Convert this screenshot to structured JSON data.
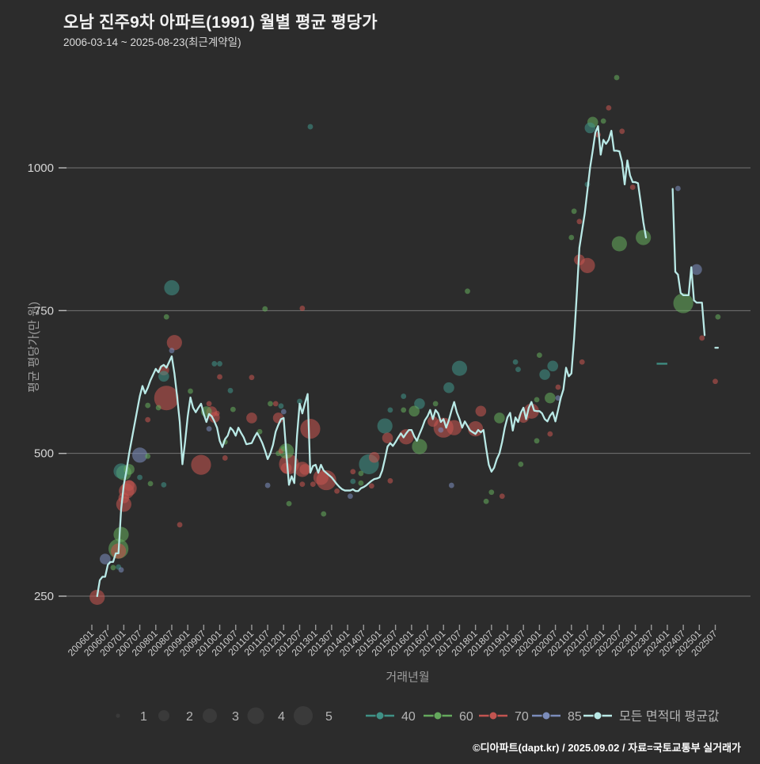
{
  "title": "오남 진주9차 아파트(1991) 월별 평균 평당가",
  "subtitle": "2006-03-14 ~ 2025-08-23(최근계약일)",
  "footer": "©디아파트(dapt.kr) / 2025.09.02 / 자료=국토교통부 실거래가",
  "colors": {
    "background": "#2c2c2c",
    "grid": "#8b8b8b",
    "avg_line": "#b9e9e6",
    "size_legend_dot": "#3a3a3a",
    "area40": "#3f9186",
    "area60": "#64a85c",
    "area70": "#c25450",
    "area85": "#7b8cba"
  },
  "chart_data": {
    "type": "scatter",
    "title": "오남 진주9차 아파트(1991) 월별 평균 평당가",
    "xlabel": "거래년월",
    "ylabel": "평균 평당가(만 원)",
    "yticks": [
      250,
      500,
      750,
      1000
    ],
    "ylim": [
      200,
      1180
    ],
    "grid": "horizontal-only",
    "xticks": [
      "200601",
      "200607",
      "200701",
      "200707",
      "200801",
      "200807",
      "200901",
      "200907",
      "201001",
      "201007",
      "201101",
      "201107",
      "201201",
      "201207",
      "201301",
      "201307",
      "201401",
      "201407",
      "201501",
      "201507",
      "201601",
      "201607",
      "201701",
      "201707",
      "201801",
      "201807",
      "201901",
      "201907",
      "202001",
      "202007",
      "202101",
      "202107",
      "202201",
      "202207",
      "202301",
      "202307",
      "202401",
      "202407",
      "202501",
      "202507"
    ],
    "size_legend": [
      "1",
      "2",
      "3",
      "4",
      "5"
    ],
    "series_legend": [
      {
        "key": "40",
        "color": "#3f9186"
      },
      {
        "key": "60",
        "color": "#64a85c"
      },
      {
        "key": "70",
        "color": "#c25450"
      },
      {
        "key": "85",
        "color": "#7b8cba"
      },
      {
        "key": "모든 면적대 평균값",
        "color": "#b9e9e6"
      }
    ],
    "avg_series_name": "모든 면적대 평균값",
    "avg_line_segments": [
      {
        "start": "200603",
        "values": [
          250,
          278,
          284,
          284,
          305,
          310,
          310,
          325,
          325,
          402,
          445,
          470,
          500,
          525,
          550,
          575,
          600,
          618,
          605,
          615,
          628,
          638,
          648,
          642,
          652,
          655,
          650,
          660,
          670,
          640,
          600,
          555,
          481,
          520,
          565,
          598,
          580,
          572,
          580,
          587,
          569,
          555,
          569,
          565,
          556,
          545,
          522,
          511,
          525,
          531,
          545,
          540,
          531,
          545,
          536,
          528,
          516,
          517,
          518,
          528,
          536,
          528,
          518,
          505,
          490,
          500,
          515,
          538,
          550,
          560,
          562,
          500,
          445,
          460,
          448,
          530,
          587,
          570,
          588,
          604,
          466,
          478,
          480,
          466,
          480,
          470,
          466,
          462,
          458,
          452,
          446,
          441,
          437,
          435,
          435,
          435,
          437,
          434,
          434,
          439,
          441,
          444,
          448,
          452,
          455,
          456,
          458,
          470,
          490,
          512,
          518,
          513,
          520,
          528,
          535,
          528,
          535,
          541,
          541,
          530,
          522,
          534,
          545,
          558,
          565,
          576,
          560,
          576,
          570,
          555,
          560,
          545,
          558,
          575,
          590,
          572,
          560,
          545,
          556,
          548,
          540,
          537,
          534,
          541,
          537,
          541,
          509,
          480,
          468,
          475,
          490,
          500,
          520,
          545,
          563,
          571,
          540,
          563,
          555,
          571,
          580,
          560,
          580,
          590,
          575,
          574,
          574,
          570,
          560,
          556,
          566,
          572,
          556,
          576,
          597,
          612,
          650,
          635,
          640,
          700,
          777,
          860,
          890,
          920,
          960,
          1000,
          1030,
          1062,
          1073,
          1023,
          1049,
          1042,
          1049,
          1065,
          1030,
          1030,
          1029,
          1010,
          971,
          1013,
          987,
          975,
          975,
          973,
          940,
          905,
          878
        ]
      },
      {
        "start": "202403",
        "values": [
          963,
          818,
          813,
          781,
          777,
          777,
          777,
          826,
          768,
          764,
          764,
          764,
          707
        ]
      },
      {
        "start": "202507",
        "values": [
          685,
          685
        ]
      }
    ],
    "series40_segments": [
      {
        "start": "202309",
        "values": [
          657,
          657,
          657,
          657,
          657
        ]
      }
    ],
    "bubbles_format": [
      "yyyymm",
      "price_per_pyeong",
      "size_1to5",
      "area_category"
    ],
    "bubbles": [
      [
        "200603",
        248,
        3,
        "70"
      ],
      [
        "200606",
        315,
        2,
        "85"
      ],
      [
        "200609",
        300,
        1,
        "60"
      ],
      [
        "200611",
        301,
        1,
        "40"
      ],
      [
        "200612",
        296,
        1,
        "85"
      ],
      [
        "200611",
        333,
        4,
        "60"
      ],
      [
        "200611",
        329,
        3,
        "70"
      ],
      [
        "200612",
        358,
        3,
        "60"
      ],
      [
        "200701",
        411,
        3,
        "70"
      ],
      [
        "200701",
        422,
        2,
        "70"
      ],
      [
        "200702",
        434,
        3,
        "70"
      ],
      [
        "200703",
        439,
        3,
        "70"
      ],
      [
        "200703",
        444,
        2,
        "70"
      ],
      [
        "200701",
        466,
        3,
        "60"
      ],
      [
        "200612",
        469,
        3,
        "40"
      ],
      [
        "200703",
        472,
        2,
        "60"
      ],
      [
        "200707",
        497,
        3,
        "85"
      ],
      [
        "200710",
        495,
        1,
        "60"
      ],
      [
        "200707",
        458,
        1,
        "40"
      ],
      [
        "200711",
        447,
        1,
        "60"
      ],
      [
        "200804",
        445,
        1,
        "40"
      ],
      [
        "200810",
        375,
        1,
        "70"
      ],
      [
        "200802",
        580,
        1,
        "60"
      ],
      [
        "200710",
        584,
        1,
        "60"
      ],
      [
        "200710",
        559,
        1,
        "70"
      ],
      [
        "200804",
        646,
        2,
        "70"
      ],
      [
        "200804",
        635,
        2,
        "40"
      ],
      [
        "200805",
        739,
        1,
        "60"
      ],
      [
        "200807",
        790,
        3,
        "40"
      ],
      [
        "200808",
        694,
        3,
        "70"
      ],
      [
        "200807",
        680,
        1,
        "85"
      ],
      [
        "200805",
        597,
        5,
        "70"
      ],
      [
        "200906",
        480,
        4,
        "70"
      ],
      [
        "200902",
        609,
        1,
        "60"
      ],
      [
        "200911",
        657,
        1,
        "40"
      ],
      [
        "201001",
        657,
        1,
        "40"
      ],
      [
        "201005",
        610,
        1,
        "40"
      ],
      [
        "200910",
        573,
        2,
        "70"
      ],
      [
        "200908",
        573,
        2,
        "60"
      ],
      [
        "200912",
        570,
        1,
        "70"
      ],
      [
        "200909",
        543,
        1,
        "85"
      ],
      [
        "201003",
        520,
        1,
        "60"
      ],
      [
        "201003",
        492,
        1,
        "70"
      ],
      [
        "201001",
        634,
        1,
        "70"
      ],
      [
        "200909",
        587,
        1,
        "70"
      ],
      [
        "200911",
        563,
        2,
        "70"
      ],
      [
        "201101",
        633,
        1,
        "70"
      ],
      [
        "201101",
        562,
        2,
        "70"
      ],
      [
        "201104",
        538,
        1,
        "60"
      ],
      [
        "201006",
        577,
        1,
        "60"
      ],
      [
        "201108",
        587,
        1,
        "60"
      ],
      [
        "201106",
        753,
        1,
        "60"
      ],
      [
        "201208",
        754,
        1,
        "70"
      ],
      [
        "201211",
        1072,
        1,
        "40"
      ],
      [
        "201110",
        587,
        1,
        "70"
      ],
      [
        "201112",
        583,
        1,
        "40"
      ],
      [
        "201201",
        573,
        1,
        "85"
      ],
      [
        "201111",
        562,
        2,
        "70"
      ],
      [
        "201111",
        500,
        1,
        "60"
      ],
      [
        "201112",
        504,
        1,
        "70"
      ],
      [
        "201107",
        444,
        1,
        "85"
      ],
      [
        "201203",
        481,
        4,
        "70"
      ],
      [
        "201202",
        504,
        3,
        "60"
      ],
      [
        "201202",
        474,
        2,
        "70"
      ],
      [
        "201211",
        543,
        4,
        "70"
      ],
      [
        "201201",
        508,
        1,
        "60"
      ],
      [
        "201209",
        472,
        2,
        "70"
      ],
      [
        "201208",
        446,
        1,
        "70"
      ],
      [
        "201208",
        472,
        3,
        "70"
      ],
      [
        "201212",
        446,
        1,
        "70"
      ],
      [
        "201303",
        458,
        3,
        "70"
      ],
      [
        "201305",
        453,
        4,
        "70"
      ],
      [
        "201203",
        412,
        1,
        "60"
      ],
      [
        "201304",
        394,
        1,
        "60"
      ],
      [
        "201207",
        591,
        1,
        "40"
      ],
      [
        "201309",
        434,
        1,
        "70"
      ],
      [
        "201403",
        451,
        1,
        "40"
      ],
      [
        "201402",
        425,
        1,
        "85"
      ],
      [
        "201403",
        468,
        1,
        "70"
      ],
      [
        "201406",
        465,
        1,
        "60"
      ],
      [
        "201410",
        443,
        1,
        "70"
      ],
      [
        "201409",
        481,
        4,
        "40"
      ],
      [
        "201406",
        448,
        1,
        "60"
      ],
      [
        "201503",
        548,
        3,
        "40"
      ],
      [
        "201505",
        576,
        1,
        "40"
      ],
      [
        "201510",
        600,
        1,
        "40"
      ],
      [
        "201604",
        587,
        2,
        "40"
      ],
      [
        "201703",
        615,
        2,
        "40"
      ],
      [
        "201707",
        649,
        3,
        "40"
      ],
      [
        "201510",
        576,
        1,
        "60"
      ],
      [
        "201602",
        574,
        2,
        "60"
      ],
      [
        "201610",
        587,
        1,
        "60"
      ],
      [
        "201612",
        541,
        1,
        "85"
      ],
      [
        "201609",
        556,
        2,
        "70"
      ],
      [
        "201511",
        529,
        3,
        "70"
      ],
      [
        "201504",
        527,
        2,
        "70"
      ],
      [
        "201411",
        493,
        2,
        "70"
      ],
      [
        "201604",
        512,
        3,
        "60"
      ],
      [
        "201701",
        545,
        4,
        "70"
      ],
      [
        "201705",
        545,
        3,
        "70"
      ],
      [
        "201801",
        543,
        3,
        "70"
      ],
      [
        "201803",
        574,
        2,
        "70"
      ],
      [
        "201810",
        562,
        2,
        "60"
      ],
      [
        "201910",
        574,
        3,
        "70"
      ],
      [
        "201907",
        563,
        2,
        "70"
      ],
      [
        "201912",
        594,
        1,
        "60"
      ],
      [
        "201904",
        660,
        1,
        "40"
      ],
      [
        "201905",
        647,
        1,
        "40"
      ],
      [
        "202003",
        638,
        2,
        "40"
      ],
      [
        "202006",
        653,
        2,
        "40"
      ],
      [
        "202005",
        597,
        2,
        "60"
      ],
      [
        "202008",
        597,
        1,
        "85"
      ],
      [
        "202005",
        534,
        1,
        "70"
      ],
      [
        "201912",
        522,
        1,
        "60"
      ],
      [
        "201906",
        481,
        1,
        "60"
      ],
      [
        "201811",
        425,
        1,
        "70"
      ],
      [
        "201805",
        416,
        1,
        "60"
      ],
      [
        "201807",
        432,
        1,
        "60"
      ],
      [
        "201704",
        444,
        1,
        "85"
      ],
      [
        "201505",
        452,
        1,
        "70"
      ],
      [
        "201710",
        784,
        1,
        "60"
      ],
      [
        "202001",
        672,
        1,
        "60"
      ],
      [
        "202008",
        616,
        1,
        "70"
      ],
      [
        "202206",
        1158,
        1,
        "60"
      ],
      [
        "202203",
        1105,
        1,
        "70"
      ],
      [
        "202201",
        1082,
        1,
        "60"
      ],
      [
        "202109",
        1080,
        2,
        "60"
      ],
      [
        "202108",
        1070,
        2,
        "40"
      ],
      [
        "202111",
        1058,
        1,
        "70"
      ],
      [
        "202208",
        1064,
        1,
        "70"
      ],
      [
        "202107",
        971,
        1,
        "40"
      ],
      [
        "202102",
        924,
        1,
        "60"
      ],
      [
        "202101",
        878,
        1,
        "60"
      ],
      [
        "202104",
        906,
        1,
        "70"
      ],
      [
        "202104",
        839,
        2,
        "70"
      ],
      [
        "202107",
        829,
        3,
        "70"
      ],
      [
        "202105",
        660,
        1,
        "70"
      ],
      [
        "202212",
        966,
        1,
        "70"
      ],
      [
        "202405",
        964,
        1,
        "85"
      ],
      [
        "202207",
        867,
        3,
        "60"
      ],
      [
        "202304",
        878,
        3,
        "60"
      ],
      [
        "202407",
        763,
        4,
        "60"
      ],
      [
        "202412",
        822,
        2,
        "85"
      ],
      [
        "202508",
        739,
        1,
        "60"
      ],
      [
        "202502",
        702,
        1,
        "70"
      ],
      [
        "202507",
        626,
        1,
        "70"
      ]
    ]
  }
}
